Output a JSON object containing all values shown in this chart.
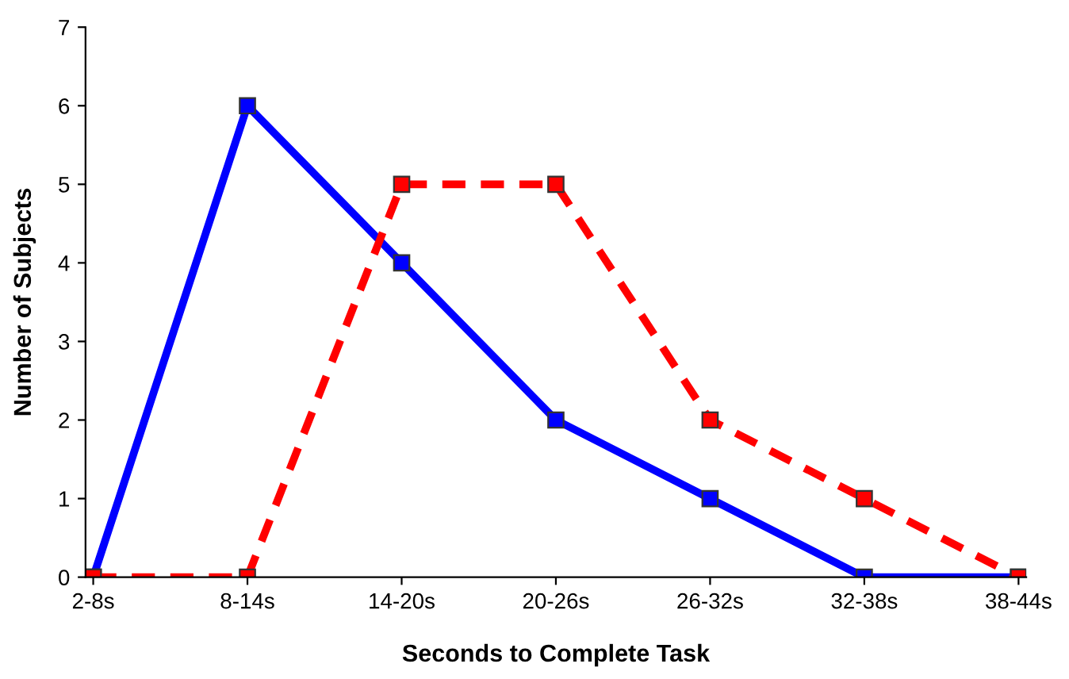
{
  "chart_data": {
    "type": "line",
    "xlabel": "Seconds to Complete Task",
    "ylabel": "Number of Subjects",
    "categories": [
      "2-8s",
      "8-14s",
      "14-20s",
      "20-26s",
      "26-32s",
      "32-38s",
      "38-44s"
    ],
    "series": [
      {
        "color": "#0000ff",
        "line_style": "solid",
        "marker": "square",
        "values": [
          0,
          6,
          4,
          2,
          1,
          0,
          0
        ]
      },
      {
        "color": "#ff0000",
        "line_style": "dashed",
        "marker": "square",
        "values": [
          0,
          0,
          5,
          5,
          2,
          1,
          0
        ]
      }
    ],
    "ylim": [
      0,
      7
    ],
    "yticks": [
      0,
      1,
      2,
      3,
      4,
      5,
      6,
      7
    ],
    "grid": false,
    "legend": false
  }
}
